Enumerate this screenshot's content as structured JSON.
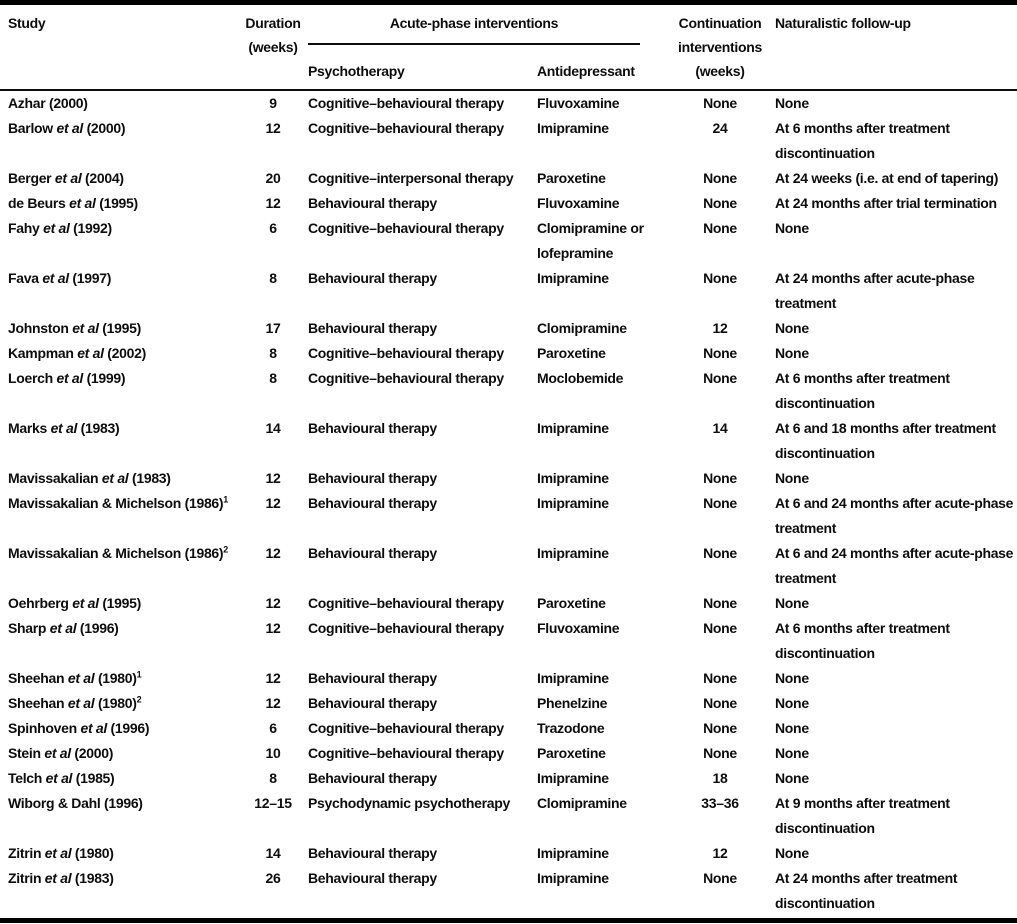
{
  "colors": {
    "text": "#0d0d0d",
    "rule": "#000000",
    "background": "#ffffff"
  },
  "table": {
    "headers": {
      "study": "Study",
      "duration_line1": "Duration",
      "duration_line2": "(weeks)",
      "acute_group": "Acute-phase interventions",
      "psychotherapy": "Psychotherapy",
      "antidepressant": "Antidepressant",
      "continuation_line1": "Continuation",
      "continuation_line2": "interventions",
      "continuation_line3": "(weeks)",
      "followup": "Naturalistic follow-up"
    },
    "rows": [
      {
        "study": "Azhar (2000)",
        "sup": "",
        "duration": "9",
        "psychotherapy": "Cognitive–behavioural therapy",
        "antidepressant": "Fluvoxamine",
        "continuation": "None",
        "followup": "None"
      },
      {
        "study": "Barlow et al (2000)",
        "sup": "",
        "duration": "12",
        "psychotherapy": "Cognitive–behavioural therapy",
        "antidepressant": "Imipramine",
        "continuation": "24",
        "followup": "At 6 months after treatment\ndiscontinuation"
      },
      {
        "study": "Berger et al (2004)",
        "sup": "",
        "duration": "20",
        "psychotherapy": "Cognitive–interpersonal therapy",
        "antidepressant": "Paroxetine",
        "continuation": "None",
        "followup": "At 24 weeks (i.e. at end of tapering)"
      },
      {
        "study": "de Beurs et al (1995)",
        "sup": "",
        "duration": "12",
        "psychotherapy": "Behavioural therapy",
        "antidepressant": "Fluvoxamine",
        "continuation": "None",
        "followup": "At 24 months after trial termination"
      },
      {
        "study": "Fahy et al (1992)",
        "sup": "",
        "duration": "6",
        "psychotherapy": "Cognitive–behavioural therapy",
        "antidepressant": "Clomipramine or\nlofepramine",
        "continuation": "None",
        "followup": "None"
      },
      {
        "study": "Fava et al (1997)",
        "sup": "",
        "duration": "8",
        "psychotherapy": "Behavioural therapy",
        "antidepressant": "Imipramine",
        "continuation": "None",
        "followup": "At 24 months after acute-phase\ntreatment"
      },
      {
        "study": "Johnston et al (1995)",
        "sup": "",
        "duration": "17",
        "psychotherapy": "Behavioural therapy",
        "antidepressant": "Clomipramine",
        "continuation": "12",
        "followup": "None"
      },
      {
        "study": "Kampman et al (2002)",
        "sup": "",
        "duration": "8",
        "psychotherapy": "Cognitive–behavioural therapy",
        "antidepressant": "Paroxetine",
        "continuation": "None",
        "followup": "None"
      },
      {
        "study": "Loerch et al (1999)",
        "sup": "",
        "duration": "8",
        "psychotherapy": "Cognitive–behavioural therapy",
        "antidepressant": "Moclobemide",
        "continuation": "None",
        "followup": "At 6 months after treatment\ndiscontinuation"
      },
      {
        "study": "Marks et al (1983)",
        "sup": "",
        "duration": "14",
        "psychotherapy": "Behavioural therapy",
        "antidepressant": "Imipramine",
        "continuation": "14",
        "followup": "At 6 and 18 months after treatment\ndiscontinuation"
      },
      {
        "study": "Mavissakalian et al (1983)",
        "sup": "",
        "duration": "12",
        "psychotherapy": "Behavioural therapy",
        "antidepressant": "Imipramine",
        "continuation": "None",
        "followup": "None"
      },
      {
        "study": "Mavissakalian & Michelson (1986)",
        "sup": "1",
        "duration": "12",
        "psychotherapy": "Behavioural therapy",
        "antidepressant": "Imipramine",
        "continuation": "None",
        "followup": "At 6 and 24 months after acute-phase\ntreatment"
      },
      {
        "study": "Mavissakalian & Michelson (1986)",
        "sup": "2",
        "duration": "12",
        "psychotherapy": "Behavioural therapy",
        "antidepressant": "Imipramine",
        "continuation": "None",
        "followup": "At 6 and 24 months after acute-phase\ntreatment"
      },
      {
        "study": "Oehrberg et al (1995)",
        "sup": "",
        "duration": "12",
        "psychotherapy": "Cognitive–behavioural therapy",
        "antidepressant": "Paroxetine",
        "continuation": "None",
        "followup": "None"
      },
      {
        "study": "Sharp et al (1996)",
        "sup": "",
        "duration": "12",
        "psychotherapy": "Cognitive–behavioural therapy",
        "antidepressant": "Fluvoxamine",
        "continuation": "None",
        "followup": "At 6 months after treatment\ndiscontinuation"
      },
      {
        "study": "Sheehan et al (1980)",
        "sup": "1",
        "duration": "12",
        "psychotherapy": "Behavioural therapy",
        "antidepressant": "Imipramine",
        "continuation": "None",
        "followup": "None"
      },
      {
        "study": "Sheehan et al (1980)",
        "sup": "2",
        "duration": "12",
        "psychotherapy": "Behavioural therapy",
        "antidepressant": "Phenelzine",
        "continuation": "None",
        "followup": "None"
      },
      {
        "study": "Spinhoven et al (1996)",
        "sup": "",
        "duration": "6",
        "psychotherapy": "Cognitive–behavioural therapy",
        "antidepressant": "Trazodone",
        "continuation": "None",
        "followup": "None"
      },
      {
        "study": "Stein et al (2000)",
        "sup": "",
        "duration": "10",
        "psychotherapy": "Cognitive–behavioural therapy",
        "antidepressant": "Paroxetine",
        "continuation": "None",
        "followup": "None"
      },
      {
        "study": "Telch et al (1985)",
        "sup": "",
        "duration": "8",
        "psychotherapy": "Behavioural therapy",
        "antidepressant": "Imipramine",
        "continuation": "18",
        "followup": "None"
      },
      {
        "study": "Wiborg & Dahl (1996)",
        "sup": "",
        "duration": "12–15",
        "psychotherapy": "Psychodynamic psychotherapy",
        "antidepressant": "Clomipramine",
        "continuation": "33–36",
        "followup": "At 9 months after treatment\ndiscontinuation"
      },
      {
        "study": "Zitrin et al (1980)",
        "sup": "",
        "duration": "14",
        "psychotherapy": "Behavioural therapy",
        "antidepressant": "Imipramine",
        "continuation": "12",
        "followup": "None"
      },
      {
        "study": "Zitrin et al (1983)",
        "sup": "",
        "duration": "26",
        "psychotherapy": "Behavioural therapy",
        "antidepressant": "Imipramine",
        "continuation": "None",
        "followup": "At 24 months after treatment\ndiscontinuation"
      }
    ]
  }
}
